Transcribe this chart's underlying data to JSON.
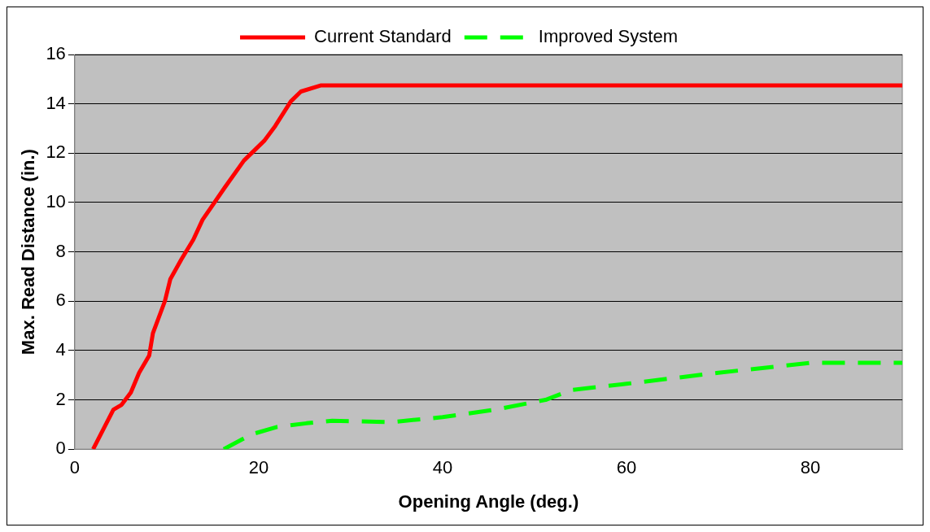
{
  "chart_data": {
    "type": "line",
    "xlabel": "Opening Angle (deg.)",
    "ylabel": "Max. Read Distance (in.)",
    "xlim": [
      0,
      90
    ],
    "xticks": [
      0,
      20,
      40,
      60,
      80
    ],
    "ylim": [
      0,
      16
    ],
    "yticks": [
      0,
      2,
      4,
      6,
      8,
      10,
      12,
      14,
      16
    ],
    "grid": "y",
    "legend": "top",
    "marker": "none",
    "series": [
      {
        "name": "Current Standard",
        "color": "#ff0000",
        "line_style": "solid",
        "x": [
          2,
          3.1,
          4.2,
          5.1,
          6.1,
          7,
          8.1,
          8.5,
          9.8,
          10.4,
          11.6,
          12.9,
          13.9,
          16.3,
          18.4,
          20.6,
          21.8,
          23.5,
          24.6,
          26.8,
          90
        ],
        "values": [
          0,
          0.8,
          1.6,
          1.8,
          2.3,
          3.1,
          3.8,
          4.7,
          6,
          6.9,
          7.7,
          8.5,
          9.3,
          10.6,
          11.7,
          12.5,
          13.1,
          14.1,
          14.5,
          14.75,
          14.75
        ]
      },
      {
        "name": "Improved System",
        "color": "#00ff00",
        "line_style": "dashed",
        "x": [
          16.2,
          19.2,
          22,
          25.2,
          28,
          34.5,
          40,
          45.7,
          51.2,
          54,
          60,
          70,
          80,
          90
        ],
        "values": [
          0,
          0.6,
          0.9,
          1.05,
          1.15,
          1.1,
          1.3,
          1.6,
          2,
          2.4,
          2.65,
          3.1,
          3.5,
          3.5
        ]
      }
    ]
  }
}
